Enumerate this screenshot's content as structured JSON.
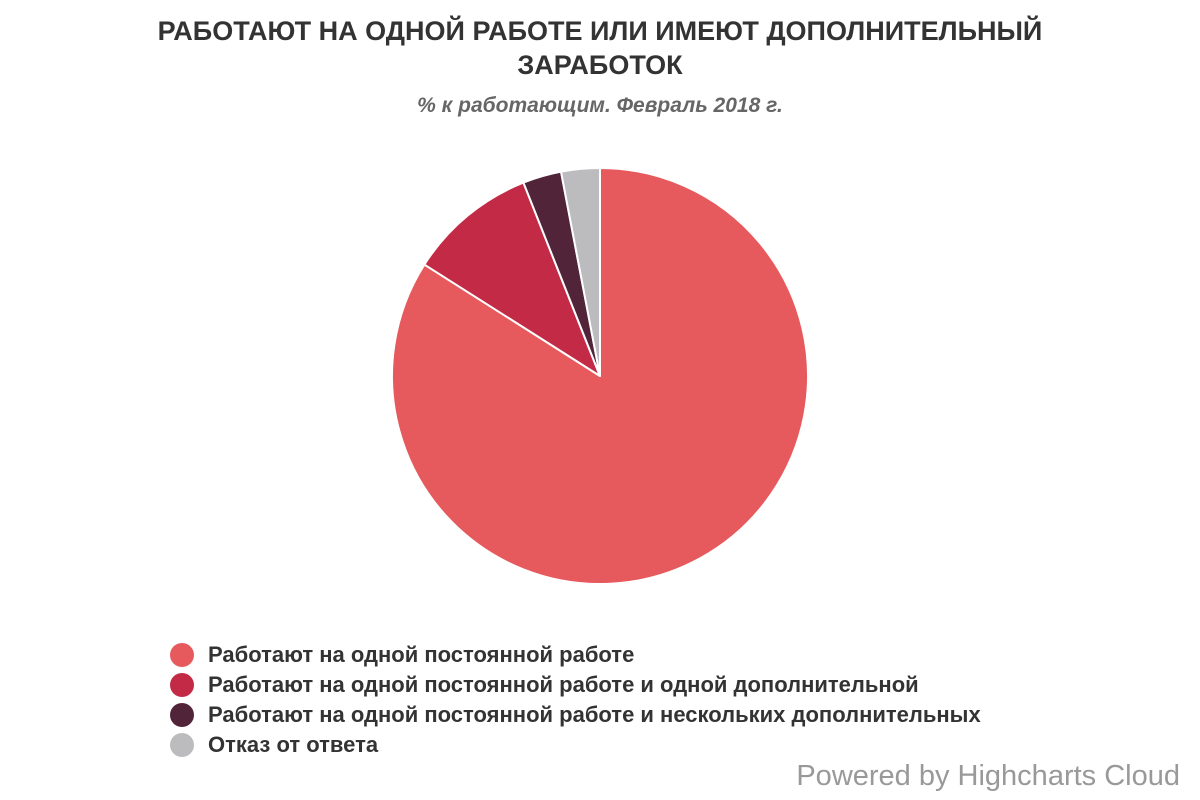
{
  "chart_data": {
    "type": "pie",
    "title": "РАБОТАЮТ НА ОДНОЙ РАБОТЕ ИЛИ ИМЕЮТ ДОПОЛНИТЕЛЬНЫЙ ЗАРАБОТОК",
    "subtitle": "% к работающим. Февраль 2018 г.",
    "legend_position": "bottom-left",
    "slices": [
      {
        "name": "Работают на одной постоянной работе",
        "value": 84,
        "color": "#e65a5e"
      },
      {
        "name": "Работают на одной постоянной работе и одной дополнительной",
        "value": 10,
        "color": "#c22a45"
      },
      {
        "name": "Работают на одной постоянной работе и нескольких дополнительных",
        "value": 3,
        "color": "#52243a"
      },
      {
        "name": "Отказ от ответа",
        "value": 3,
        "color": "#bcbcbe"
      }
    ]
  },
  "credits": "Powered by Highcharts Cloud"
}
